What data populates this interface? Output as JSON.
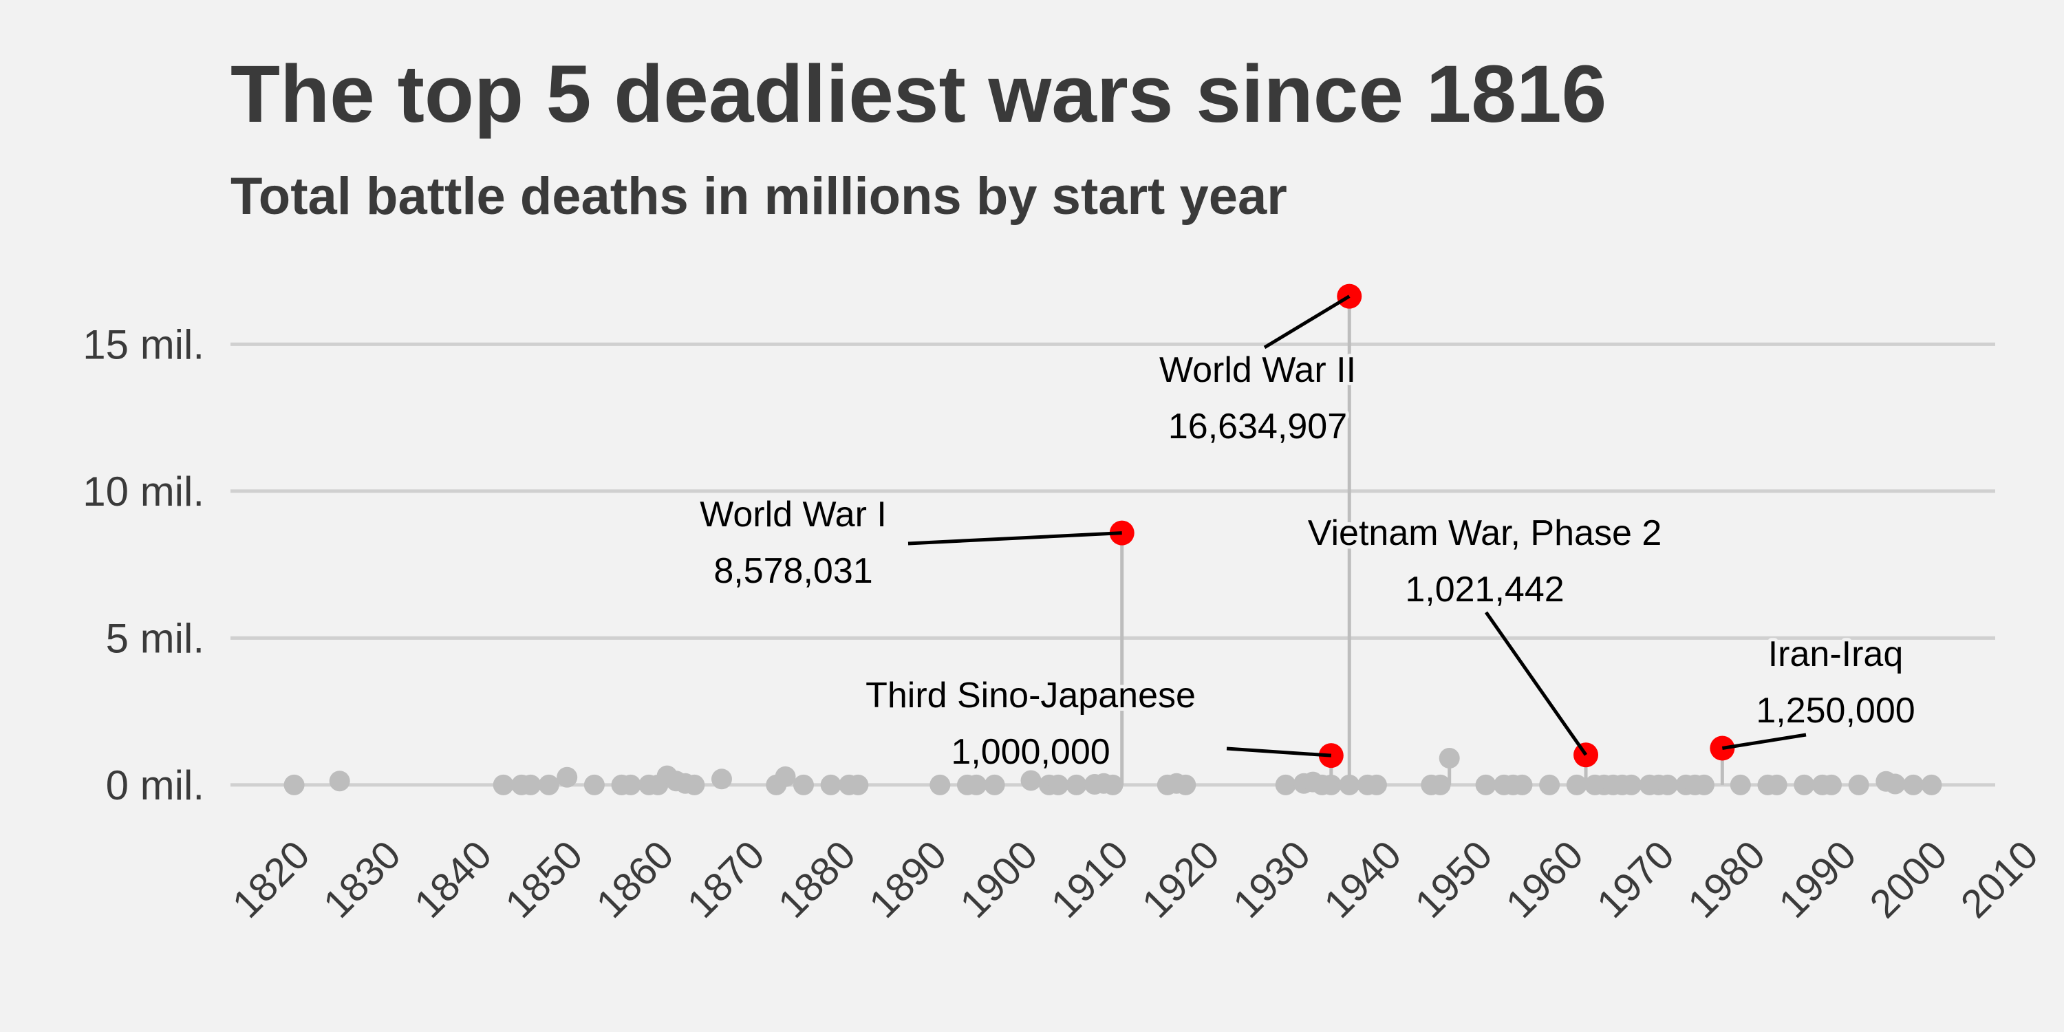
{
  "chart_data": {
    "type": "scatter",
    "title": "The top 5 deadliest wars since 1816",
    "subtitle": "Total battle deaths in millions by start year",
    "xlabel": "",
    "ylabel": "",
    "xlim": [
      1816,
      2010
    ],
    "ylim": [
      -0.8,
      17
    ],
    "xticks": [
      1820,
      1830,
      1840,
      1850,
      1860,
      1870,
      1880,
      1890,
      1900,
      1910,
      1920,
      1930,
      1940,
      1950,
      1960,
      1970,
      1980,
      1990,
      2000,
      2010
    ],
    "yticks": [
      {
        "value": 0,
        "label": "0 mil."
      },
      {
        "value": 5,
        "label": "5 mil."
      },
      {
        "value": 10,
        "label": "10 mil."
      },
      {
        "value": 15,
        "label": "15 mil."
      }
    ],
    "grid": "horizontal",
    "colors": {
      "highlight": "#ff0000",
      "other": "#bdbdbd",
      "grid": "#d0d0d0",
      "background": "#f2f2f2",
      "text": "#3a3a3a"
    },
    "other_wars": [
      {
        "year": 1823,
        "deaths": 0.0
      },
      {
        "year": 1828,
        "deaths": 0.13
      },
      {
        "year": 1846,
        "deaths": 0.0
      },
      {
        "year": 1848,
        "deaths": 0.0
      },
      {
        "year": 1849,
        "deaths": 0.0
      },
      {
        "year": 1851,
        "deaths": 0.0
      },
      {
        "year": 1853,
        "deaths": 0.26
      },
      {
        "year": 1856,
        "deaths": 0.0
      },
      {
        "year": 1859,
        "deaths": 0.0
      },
      {
        "year": 1860,
        "deaths": 0.0
      },
      {
        "year": 1862,
        "deaths": 0.0
      },
      {
        "year": 1863,
        "deaths": 0.0
      },
      {
        "year": 1864,
        "deaths": 0.31
      },
      {
        "year": 1865,
        "deaths": 0.13
      },
      {
        "year": 1866,
        "deaths": 0.05
      },
      {
        "year": 1867,
        "deaths": 0.0
      },
      {
        "year": 1870,
        "deaths": 0.2
      },
      {
        "year": 1876,
        "deaths": 0.0
      },
      {
        "year": 1877,
        "deaths": 0.28
      },
      {
        "year": 1879,
        "deaths": 0.0
      },
      {
        "year": 1882,
        "deaths": 0.0
      },
      {
        "year": 1884,
        "deaths": 0.0
      },
      {
        "year": 1885,
        "deaths": 0.0
      },
      {
        "year": 1894,
        "deaths": 0.0
      },
      {
        "year": 1897,
        "deaths": 0.0
      },
      {
        "year": 1898,
        "deaths": 0.0
      },
      {
        "year": 1900,
        "deaths": 0.0
      },
      {
        "year": 1904,
        "deaths": 0.15
      },
      {
        "year": 1906,
        "deaths": 0.0
      },
      {
        "year": 1907,
        "deaths": 0.0
      },
      {
        "year": 1909,
        "deaths": 0.0
      },
      {
        "year": 1911,
        "deaths": 0.02
      },
      {
        "year": 1912,
        "deaths": 0.05
      },
      {
        "year": 1913,
        "deaths": 0.0
      },
      {
        "year": 1919,
        "deaths": 0.0
      },
      {
        "year": 1920,
        "deaths": 0.05
      },
      {
        "year": 1921,
        "deaths": 0.0
      },
      {
        "year": 1932,
        "deaths": 0.0
      },
      {
        "year": 1934,
        "deaths": 0.05
      },
      {
        "year": 1935,
        "deaths": 0.1
      },
      {
        "year": 1936,
        "deaths": 0.0
      },
      {
        "year": 1937,
        "deaths": 0.0
      },
      {
        "year": 1939,
        "deaths": 0.0
      },
      {
        "year": 1941,
        "deaths": 0.0
      },
      {
        "year": 1942,
        "deaths": 0.0
      },
      {
        "year": 1948,
        "deaths": 0.0
      },
      {
        "year": 1949,
        "deaths": 0.0
      },
      {
        "year": 1950,
        "deaths": 0.91
      },
      {
        "year": 1954,
        "deaths": 0.0
      },
      {
        "year": 1956,
        "deaths": 0.0
      },
      {
        "year": 1957,
        "deaths": 0.0
      },
      {
        "year": 1958,
        "deaths": 0.0
      },
      {
        "year": 1961,
        "deaths": 0.0
      },
      {
        "year": 1964,
        "deaths": 0.0
      },
      {
        "year": 1966,
        "deaths": 0.0
      },
      {
        "year": 1967,
        "deaths": 0.0
      },
      {
        "year": 1968,
        "deaths": 0.0
      },
      {
        "year": 1969,
        "deaths": 0.0
      },
      {
        "year": 1970,
        "deaths": 0.0
      },
      {
        "year": 1972,
        "deaths": 0.0
      },
      {
        "year": 1973,
        "deaths": 0.0
      },
      {
        "year": 1974,
        "deaths": 0.0
      },
      {
        "year": 1976,
        "deaths": 0.0
      },
      {
        "year": 1977,
        "deaths": 0.0
      },
      {
        "year": 1978,
        "deaths": 0.0
      },
      {
        "year": 1982,
        "deaths": 0.0
      },
      {
        "year": 1985,
        "deaths": 0.0
      },
      {
        "year": 1986,
        "deaths": 0.0
      },
      {
        "year": 1989,
        "deaths": 0.0
      },
      {
        "year": 1991,
        "deaths": 0.0
      },
      {
        "year": 1992,
        "deaths": 0.0
      },
      {
        "year": 1995,
        "deaths": 0.0
      },
      {
        "year": 1998,
        "deaths": 0.12
      },
      {
        "year": 1999,
        "deaths": 0.03
      },
      {
        "year": 2001,
        "deaths": 0.0
      },
      {
        "year": 2003,
        "deaths": 0.0
      }
    ],
    "top_wars": [
      {
        "name": "World War II",
        "value_label": "16,634,907",
        "year": 1939,
        "deaths": 16.634907
      },
      {
        "name": "World War I",
        "value_label": "8,578,031",
        "year": 1914,
        "deaths": 8.578031
      },
      {
        "name": "Third Sino-Japanese",
        "value_label": "1,000,000",
        "year": 1937,
        "deaths": 1.0
      },
      {
        "name": "Vietnam War, Phase 2",
        "value_label": "1,021,442",
        "year": 1965,
        "deaths": 1.021442
      },
      {
        "name": "Iran-Iraq",
        "value_label": "1,250,000",
        "year": 1980,
        "deaths": 1.25
      }
    ]
  }
}
